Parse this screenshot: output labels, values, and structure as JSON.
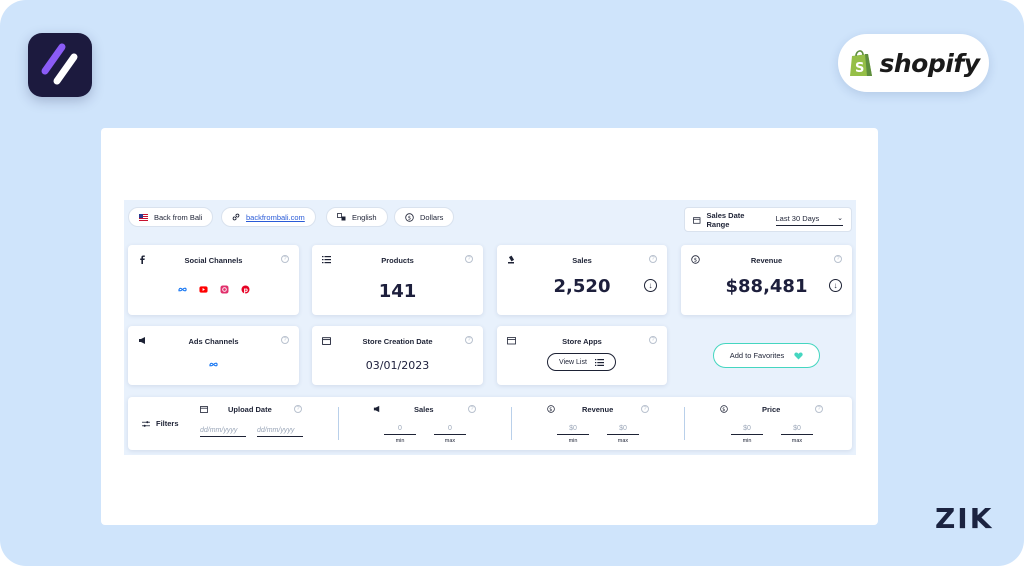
{
  "brand": {
    "shopify": "shopify",
    "zik": "ZIK"
  },
  "colors": {
    "background": "#cfe4fb",
    "accent_teal": "#45d6c0",
    "text_dark": "#1d2235",
    "link": "#2a5bd7"
  },
  "store_pills": [
    {
      "icon": "us-flag-icon",
      "label": "Back from Bali"
    },
    {
      "icon": "link-icon",
      "label": "backfrombali.com"
    },
    {
      "icon": "language-icon",
      "label": "English"
    },
    {
      "icon": "dollar-icon",
      "label": "Dollars"
    }
  ],
  "date_range": {
    "label": "Sales Date Range",
    "value": "Last 30 Days"
  },
  "cards": {
    "social": {
      "title": "Social Channels",
      "channels": [
        "meta-icon",
        "youtube-icon",
        "instagram-icon",
        "pinterest-icon"
      ]
    },
    "products": {
      "title": "Products",
      "value": "141"
    },
    "sales": {
      "title": "Sales",
      "value": "2,520"
    },
    "revenue": {
      "title": "Revenue",
      "value": "$88,481"
    },
    "ads": {
      "title": "Ads Channels",
      "channels": [
        "meta-icon"
      ]
    },
    "creation": {
      "title": "Store Creation Date",
      "value": "03/01/2023"
    },
    "apps": {
      "title": "Store Apps",
      "button": "View List"
    },
    "favorites": {
      "label": "Add to Favorites"
    }
  },
  "filters": {
    "label": "Filters",
    "upload_date": {
      "title": "Upload Date",
      "from_placeholder": "dd/mm/yyyy",
      "to_placeholder": "dd/mm/yyyy"
    },
    "sales": {
      "title": "Sales",
      "min": "0",
      "max": "0",
      "min_label": "min",
      "max_label": "max"
    },
    "revenue": {
      "title": "Revenue",
      "min": "$0",
      "max": "$0",
      "min_label": "min",
      "max_label": "max"
    },
    "price": {
      "title": "Price",
      "min": "$0",
      "max": "$0",
      "min_label": "min",
      "max_label": "max"
    }
  }
}
